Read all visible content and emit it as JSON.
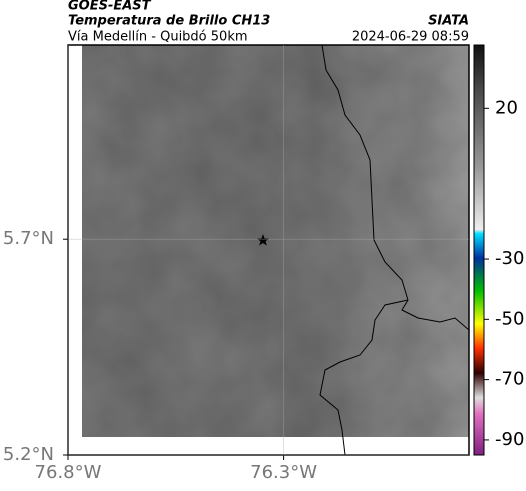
{
  "header": {
    "satellite": "GOES-EAST",
    "product": "Temperatura de Brillo CH13",
    "location": "Vía Medellín - Quibdó 50km",
    "agency": "SIATA",
    "datetime": "2024-06-29 08:59"
  },
  "map": {
    "xlim": [
      -76.8,
      -75.87
    ],
    "ylim": [
      5.2,
      6.15
    ],
    "xticks": [
      {
        "value": -76.8,
        "label": "76.8°W"
      },
      {
        "value": -76.3,
        "label": "76.3°W"
      }
    ],
    "yticks": [
      {
        "value": 5.2,
        "label": "5.2°N"
      },
      {
        "value": 5.7,
        "label": "5.7°N"
      }
    ],
    "grid": true
  },
  "colorbar": {
    "lim": [
      -95,
      41
    ],
    "ticks": [
      20,
      -30,
      -50,
      -70,
      -90
    ]
  }
}
